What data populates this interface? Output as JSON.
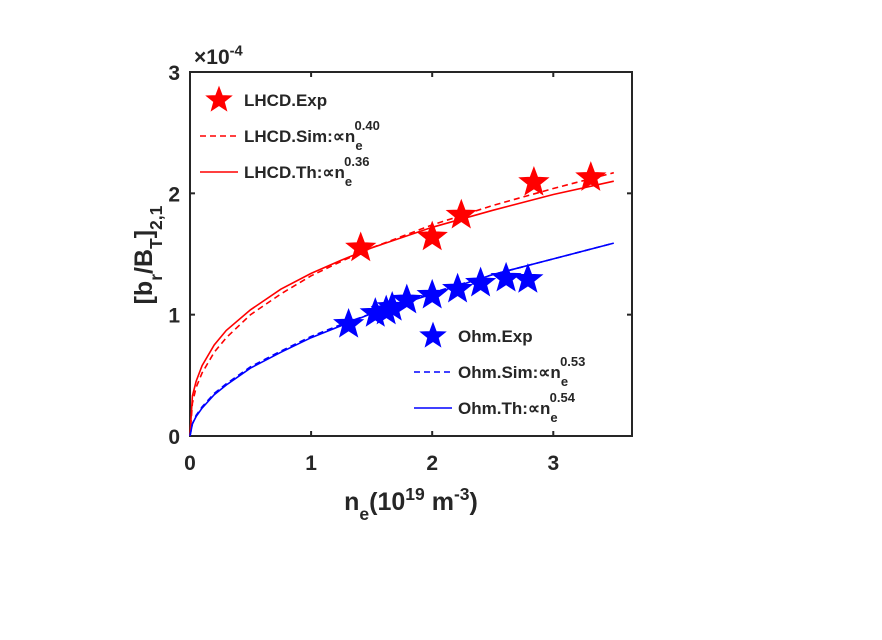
{
  "chart_data": {
    "type": "line",
    "axis_multiplier": [
      "×10",
      "-4"
    ],
    "ylabel": [
      "[b",
      "r",
      "/B",
      "T",
      "]",
      "2,1"
    ],
    "xlabel": [
      "n",
      "e",
      "(10",
      "19",
      " m",
      "-3",
      ")"
    ],
    "xlim": [
      0,
      3.65
    ],
    "ylim": [
      0,
      3
    ],
    "xticks": [
      0,
      1,
      2,
      3
    ],
    "yticks": [
      0,
      1,
      2,
      3
    ],
    "series": [
      {
        "name": "LHCD.Exp",
        "style": "star",
        "color": "#ff0000",
        "legend": "upper left",
        "x": [
          1.41,
          2.0,
          2.24,
          2.84,
          3.31
        ],
        "values": [
          1.55,
          1.64,
          1.82,
          2.09,
          2.13
        ]
      },
      {
        "name": "LHCD.Sim:∝n",
        "name_sub": "e",
        "name_sup": "0.40",
        "style": "dashed",
        "color": "#ff0000",
        "legend": "upper left",
        "x": [
          0,
          0.02,
          0.05,
          0.1,
          0.2,
          0.3,
          0.5,
          0.75,
          1,
          1.25,
          1.5,
          2,
          2.5,
          3,
          3.5
        ],
        "values": [
          0,
          0.27,
          0.4,
          0.52,
          0.69,
          0.81,
          1.0,
          1.17,
          1.32,
          1.44,
          1.55,
          1.74,
          1.9,
          2.04,
          2.17
        ]
      },
      {
        "name": "LHCD.Th:∝n",
        "name_sub": "e",
        "name_sup": "0.36",
        "style": "solid",
        "color": "#ff0000",
        "legend": "upper left",
        "x": [
          0,
          0.02,
          0.05,
          0.1,
          0.2,
          0.3,
          0.5,
          0.75,
          1,
          1.25,
          1.5,
          2,
          2.5,
          3,
          3.5
        ],
        "values": [
          0,
          0.33,
          0.45,
          0.58,
          0.75,
          0.87,
          1.04,
          1.21,
          1.34,
          1.45,
          1.55,
          1.72,
          1.86,
          1.99,
          2.1
        ]
      },
      {
        "name": "Ohm.Exp",
        "style": "star",
        "color": "#0000ff",
        "legend": "lower right",
        "x": [
          1.31,
          1.53,
          1.62,
          1.67,
          1.79,
          2.0,
          2.21,
          2.4,
          2.61,
          2.79
        ],
        "values": [
          0.92,
          1.01,
          1.03,
          1.06,
          1.12,
          1.16,
          1.21,
          1.26,
          1.3,
          1.29
        ]
      },
      {
        "name": "Ohm.Sim:∝n",
        "name_sub": "e",
        "name_sup": "0.53",
        "style": "dashed",
        "color": "#0000ff",
        "legend": "lower right",
        "x": [
          0,
          0.02,
          0.05,
          0.1,
          0.2,
          0.3,
          0.5,
          0.75,
          1,
          1.25,
          1.5,
          2,
          2.5,
          3,
          3.5
        ],
        "values": [
          0,
          0.1,
          0.17,
          0.24,
          0.35,
          0.43,
          0.57,
          0.7,
          0.82,
          0.92,
          1.01,
          1.18,
          1.33,
          1.46,
          1.59
        ]
      },
      {
        "name": "Ohm.Th:∝n",
        "name_sub": "e",
        "name_sup": "0.54",
        "style": "solid",
        "color": "#0000ff",
        "legend": "lower right",
        "x": [
          0,
          0.02,
          0.05,
          0.1,
          0.2,
          0.3,
          0.5,
          0.75,
          1,
          1.25,
          1.5,
          2,
          2.5,
          3,
          3.5
        ],
        "values": [
          0,
          0.1,
          0.16,
          0.23,
          0.34,
          0.42,
          0.56,
          0.69,
          0.81,
          0.91,
          1.01,
          1.17,
          1.33,
          1.46,
          1.59
        ]
      }
    ]
  }
}
